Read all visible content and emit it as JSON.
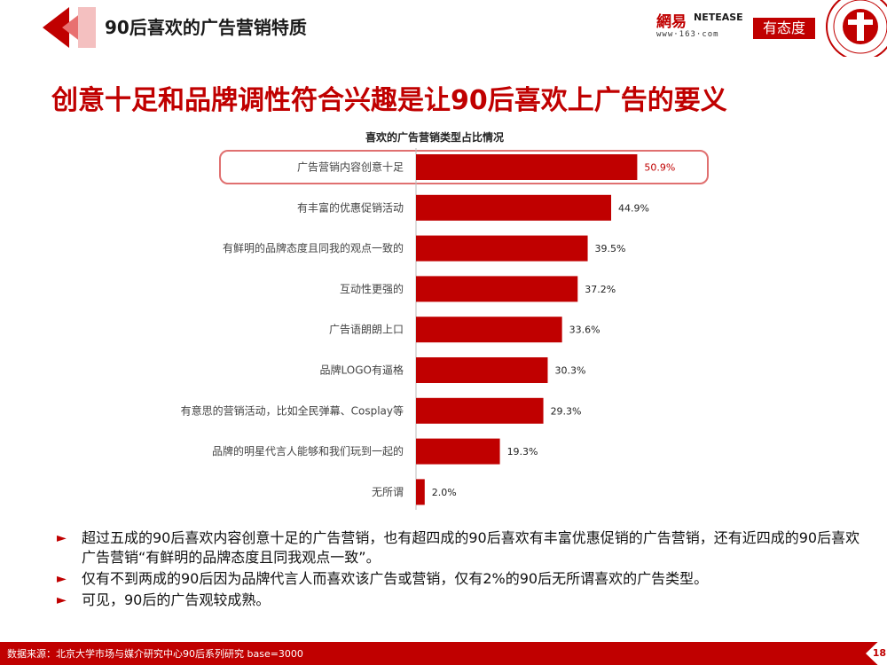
{
  "header": {
    "title": "90后喜欢的广告营销特质",
    "logo_netease_cn": "網易",
    "logo_netease_en": "NETEASE",
    "logo_netease_url": "www·163·com",
    "logo_youtaidu": "有态度"
  },
  "main_title": "创意十足和品牌调性符合兴趣是让90后喜欢上广告的要义",
  "chart_data": {
    "type": "bar",
    "orientation": "horizontal",
    "title": "喜欢的广告营销类型占比情况",
    "categories": [
      "广告营销内容创意十足",
      "有丰富的优惠促销活动",
      "有鲜明的品牌态度且同我的观点一致的",
      "互动性更强的",
      "广告语朗朗上口",
      "品牌LOGO有逼格",
      "有意思的营销活动，比如全民弹幕、Cosplay等",
      "品牌的明星代言人能够和我们玩到一起的",
      "无所谓"
    ],
    "values": [
      50.9,
      44.9,
      39.5,
      37.2,
      33.6,
      30.3,
      29.3,
      19.3,
      2.0
    ],
    "value_labels": [
      "50.9%",
      "44.9%",
      "39.5%",
      "37.2%",
      "33.6%",
      "30.3%",
      "29.3%",
      "19.3%",
      "2.0%"
    ],
    "highlight_index": 0,
    "bar_color": "#c00000",
    "highlight_label_color": "#c00000",
    "xlim": [
      0,
      100
    ]
  },
  "bullets": [
    "超过五成的90后喜欢内容创意十足的广告营销，也有超四成的90后喜欢有丰富优惠促销的广告营销，还有近四成的90后喜欢广告营销“有鲜明的品牌态度且同我观点一致”。",
    "仅有不到两成的90后因为品牌代言人而喜欢该广告或营销，仅有2%的90后无所谓喜欢的广告类型。",
    "可见，90后的广告观较成熟。"
  ],
  "footer": {
    "source": "数据来源：北京大学市场与媒介研究中心90后系列研究 base=3000",
    "page_number": "18"
  },
  "colors": {
    "accent": "#c00000"
  }
}
